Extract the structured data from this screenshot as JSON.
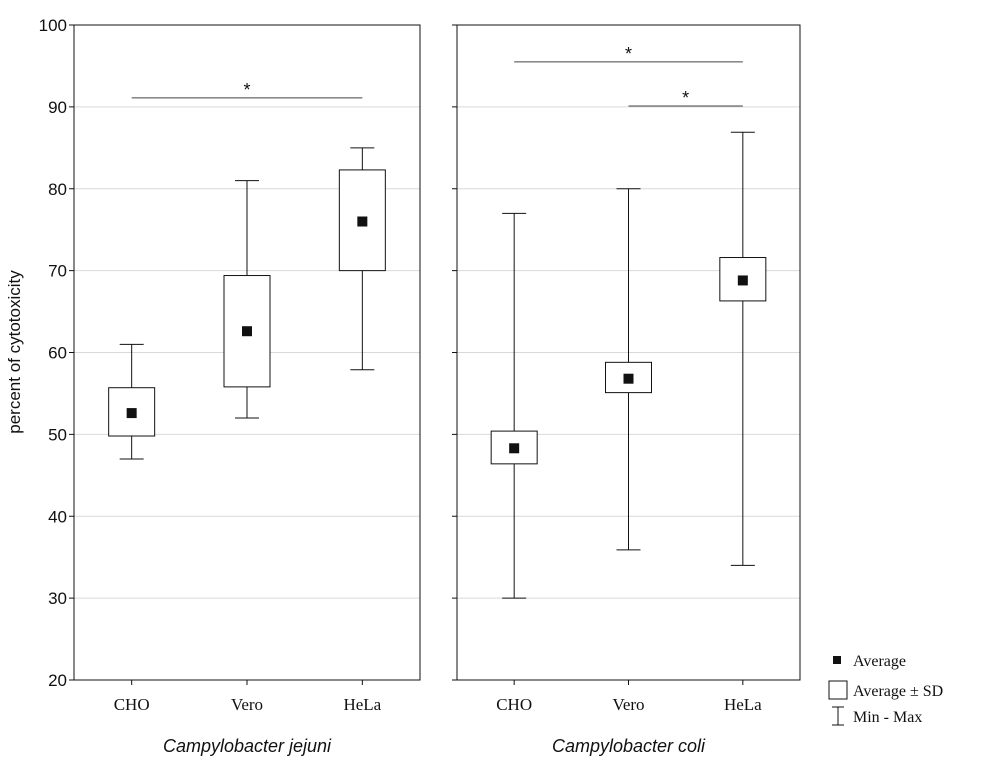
{
  "chart_data": {
    "type": "box",
    "ylabel": "percent of cytotoxicity",
    "ylim": [
      20,
      100
    ],
    "yticks": [
      20,
      30,
      40,
      50,
      60,
      70,
      80,
      90,
      100
    ],
    "grid": true,
    "legend_position": "bottom-right",
    "panels": [
      {
        "subtitle": "Campylobacter jejuni",
        "categories": [
          "CHO",
          "Vero",
          "HeLa"
        ],
        "average": [
          52.6,
          62.6,
          76.0
        ],
        "sd_low": [
          49.8,
          55.8,
          70.0
        ],
        "sd_high": [
          55.7,
          69.4,
          82.3
        ],
        "min": [
          47.0,
          52.0,
          57.9
        ],
        "max": [
          61.0,
          81.0,
          85.0
        ],
        "significance": [
          {
            "from": "CHO",
            "to": "HeLa",
            "y": 91.1,
            "label": "*"
          }
        ]
      },
      {
        "subtitle": "Campylobacter coli",
        "categories": [
          "CHO",
          "Vero",
          "HeLa"
        ],
        "average": [
          48.3,
          56.8,
          68.8
        ],
        "sd_low": [
          46.4,
          55.1,
          66.3
        ],
        "sd_high": [
          50.4,
          58.8,
          71.6
        ],
        "min": [
          30.0,
          35.9,
          34.0
        ],
        "max": [
          77.0,
          80.0,
          86.9
        ],
        "significance": [
          {
            "from": "CHO",
            "to": "HeLa",
            "y": 95.5,
            "label": "*"
          },
          {
            "from": "Vero",
            "to": "HeLa",
            "y": 90.1,
            "label": "*"
          }
        ]
      }
    ],
    "legend": [
      {
        "symbol": "square-marker",
        "label": "Average"
      },
      {
        "symbol": "box",
        "label": "Average ± SD"
      },
      {
        "symbol": "whisker",
        "label": "Min - Max"
      }
    ]
  }
}
